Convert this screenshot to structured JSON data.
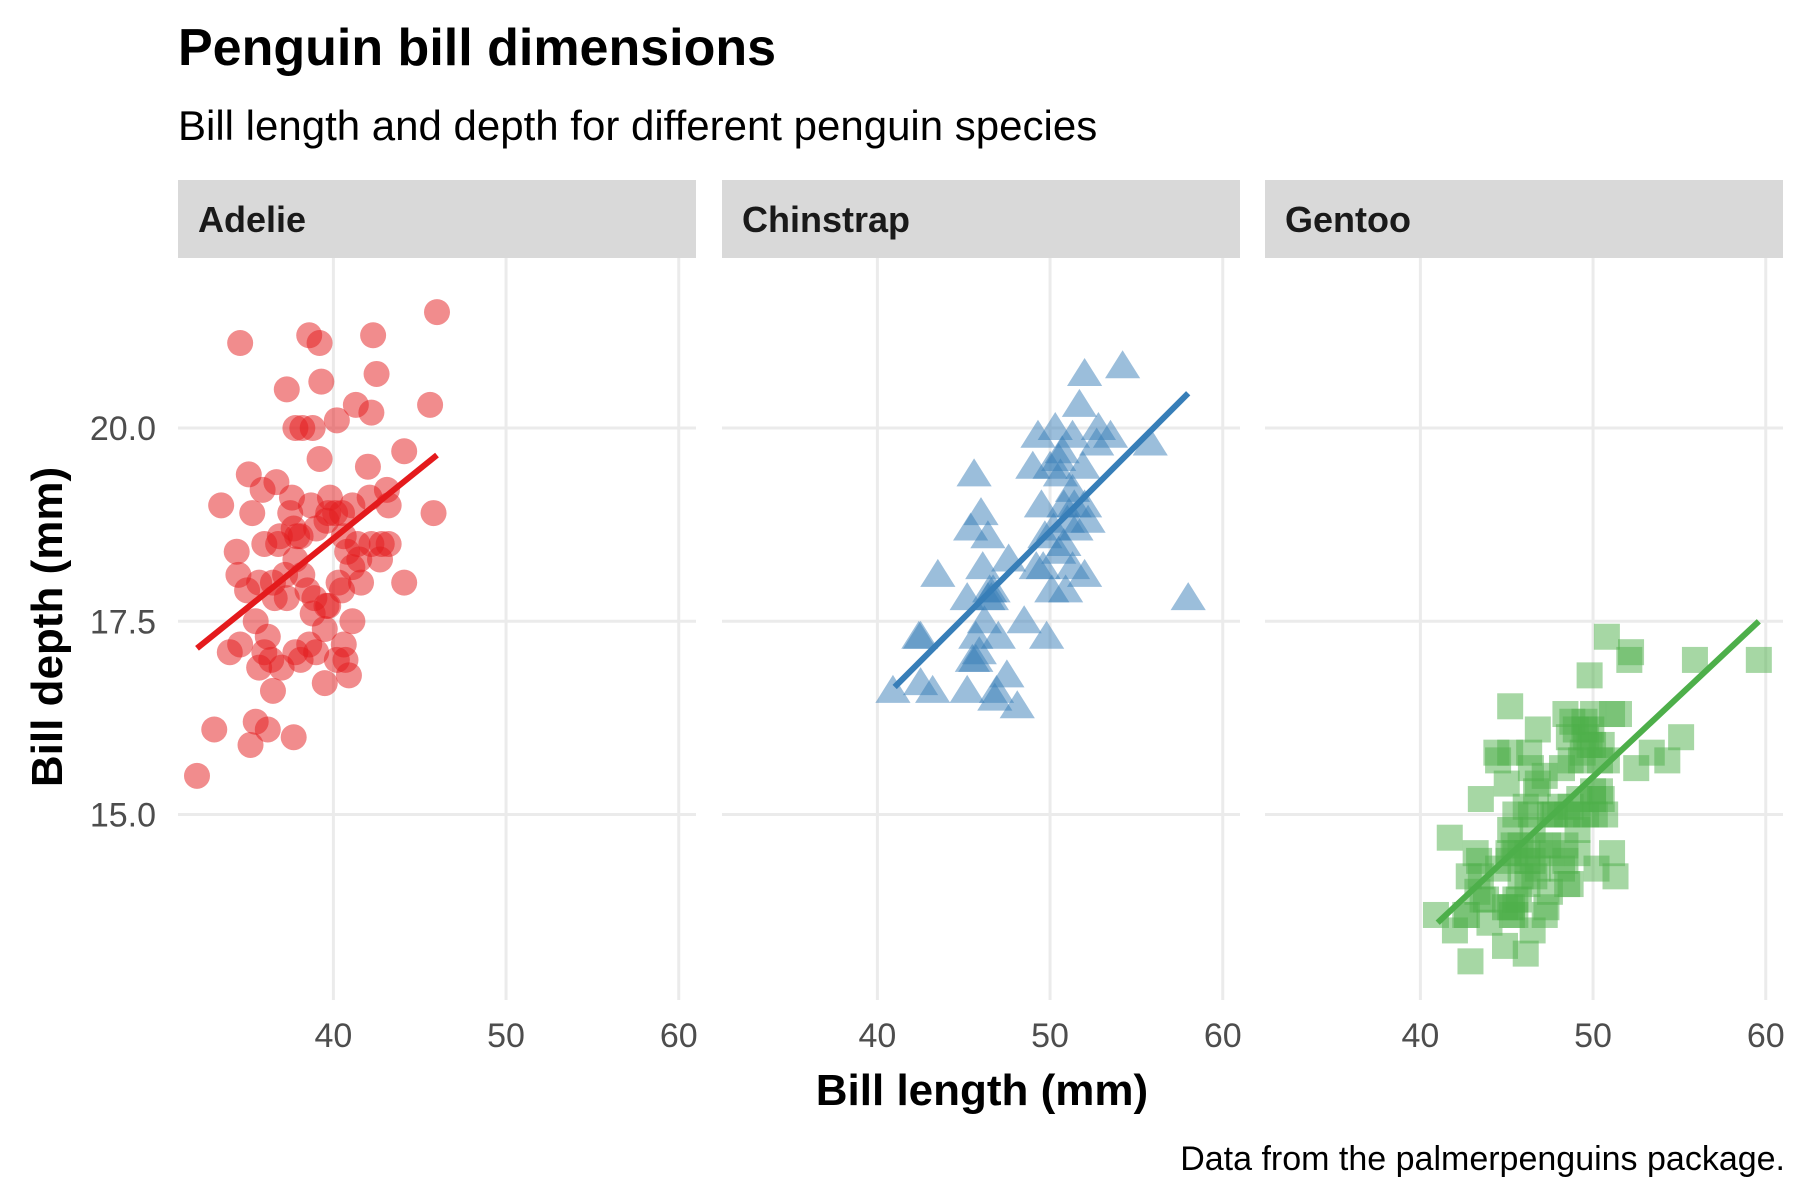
{
  "chart_data": {
    "type": "scatter",
    "title": "Penguin bill dimensions",
    "subtitle": "Bill length and depth for different penguin species",
    "xlabel": "Bill length (mm)",
    "ylabel": "Bill depth (mm)",
    "caption": "Data from the palmerpenguins package.",
    "xlim": [
      31,
      61
    ],
    "ylim": [
      12.6,
      22.2
    ],
    "x_ticks": [
      "40",
      "50",
      "60"
    ],
    "x_tick_values": [
      40,
      50,
      60
    ],
    "y_ticks": [
      "15.0",
      "17.5",
      "20.0"
    ],
    "y_tick_values": [
      15.0,
      17.5,
      20.0
    ],
    "grid": true,
    "legend": "none",
    "facets": [
      {
        "name": "Adelie",
        "color": "#e41a1c",
        "shape": "circle",
        "trend": [
          [
            32.1,
            17.15
          ],
          [
            46.0,
            19.65
          ]
        ],
        "points": [
          [
            32.1,
            15.5
          ],
          [
            33.1,
            16.1
          ],
          [
            33.5,
            19.0
          ],
          [
            34.0,
            17.1
          ],
          [
            34.4,
            18.4
          ],
          [
            34.5,
            18.1
          ],
          [
            34.6,
            21.1
          ],
          [
            34.6,
            17.2
          ],
          [
            35.0,
            17.9
          ],
          [
            35.1,
            19.4
          ],
          [
            35.2,
            15.9
          ],
          [
            35.3,
            18.9
          ],
          [
            35.5,
            16.2
          ],
          [
            35.5,
            17.5
          ],
          [
            35.7,
            16.9
          ],
          [
            35.7,
            18.0
          ],
          [
            35.9,
            19.2
          ],
          [
            36.0,
            17.1
          ],
          [
            36.0,
            18.5
          ],
          [
            36.2,
            16.1
          ],
          [
            36.2,
            17.3
          ],
          [
            36.4,
            17.0
          ],
          [
            36.5,
            18.0
          ],
          [
            36.5,
            16.6
          ],
          [
            36.6,
            17.8
          ],
          [
            36.7,
            19.3
          ],
          [
            36.8,
            18.5
          ],
          [
            36.9,
            18.6
          ],
          [
            37.0,
            16.9
          ],
          [
            37.2,
            18.1
          ],
          [
            37.3,
            17.8
          ],
          [
            37.3,
            20.5
          ],
          [
            37.5,
            18.9
          ],
          [
            37.6,
            19.1
          ],
          [
            37.7,
            16.0
          ],
          [
            37.7,
            18.7
          ],
          [
            37.8,
            17.1
          ],
          [
            37.8,
            18.3
          ],
          [
            37.8,
            20.0
          ],
          [
            37.9,
            18.6
          ],
          [
            38.1,
            17.0
          ],
          [
            38.1,
            18.6
          ],
          [
            38.2,
            18.1
          ],
          [
            38.2,
            20.0
          ],
          [
            38.5,
            17.9
          ],
          [
            38.6,
            17.2
          ],
          [
            38.6,
            21.2
          ],
          [
            38.7,
            19.0
          ],
          [
            38.8,
            17.6
          ],
          [
            38.8,
            20.0
          ],
          [
            38.9,
            17.8
          ],
          [
            39.0,
            17.1
          ],
          [
            39.0,
            18.7
          ],
          [
            39.2,
            19.6
          ],
          [
            39.2,
            21.1
          ],
          [
            39.3,
            20.6
          ],
          [
            39.5,
            16.7
          ],
          [
            39.5,
            17.4
          ],
          [
            39.6,
            17.7
          ],
          [
            39.6,
            18.8
          ],
          [
            39.7,
            17.7
          ],
          [
            39.7,
            18.9
          ],
          [
            39.8,
            19.1
          ],
          [
            40.1,
            18.9
          ],
          [
            40.2,
            17.0
          ],
          [
            40.2,
            20.1
          ],
          [
            40.3,
            18.0
          ],
          [
            40.5,
            17.9
          ],
          [
            40.5,
            18.9
          ],
          [
            40.6,
            17.2
          ],
          [
            40.6,
            18.6
          ],
          [
            40.7,
            17.0
          ],
          [
            40.8,
            18.4
          ],
          [
            40.9,
            16.8
          ],
          [
            41.1,
            17.5
          ],
          [
            41.1,
            18.2
          ],
          [
            41.1,
            19.0
          ],
          [
            41.3,
            20.3
          ],
          [
            41.4,
            18.5
          ],
          [
            41.5,
            18.3
          ],
          [
            41.6,
            18.0
          ],
          [
            42.0,
            19.5
          ],
          [
            42.1,
            19.1
          ],
          [
            42.2,
            18.5
          ],
          [
            42.2,
            20.2
          ],
          [
            42.3,
            21.2
          ],
          [
            42.5,
            20.7
          ],
          [
            42.7,
            18.3
          ],
          [
            42.8,
            18.5
          ],
          [
            43.1,
            19.2
          ],
          [
            43.2,
            18.5
          ],
          [
            43.2,
            19.0
          ],
          [
            44.1,
            18.0
          ],
          [
            44.1,
            19.7
          ],
          [
            45.6,
            20.3
          ],
          [
            45.8,
            18.9
          ],
          [
            46.0,
            21.5
          ]
        ]
      },
      {
        "name": "Chinstrap",
        "color": "#377eb8",
        "shape": "triangle",
        "trend": [
          [
            41.0,
            16.65
          ],
          [
            58.0,
            20.45
          ]
        ],
        "points": [
          [
            40.9,
            16.6
          ],
          [
            42.4,
            17.3
          ],
          [
            42.5,
            16.7
          ],
          [
            42.5,
            17.3
          ],
          [
            43.2,
            16.6
          ],
          [
            43.5,
            18.1
          ],
          [
            45.2,
            16.6
          ],
          [
            45.2,
            17.8
          ],
          [
            45.4,
            18.7
          ],
          [
            45.5,
            17.0
          ],
          [
            45.6,
            19.4
          ],
          [
            45.7,
            17.0
          ],
          [
            45.7,
            17.3
          ],
          [
            45.9,
            17.1
          ],
          [
            46.0,
            18.9
          ],
          [
            46.1,
            18.2
          ],
          [
            46.2,
            17.5
          ],
          [
            46.4,
            17.8
          ],
          [
            46.4,
            18.6
          ],
          [
            46.5,
            17.9
          ],
          [
            46.6,
            17.8
          ],
          [
            46.7,
            17.9
          ],
          [
            46.8,
            16.5
          ],
          [
            46.9,
            16.6
          ],
          [
            47.0,
            17.3
          ],
          [
            47.5,
            16.8
          ],
          [
            47.6,
            18.3
          ],
          [
            48.1,
            16.4
          ],
          [
            48.5,
            17.5
          ],
          [
            49.0,
            19.5
          ],
          [
            49.2,
            18.2
          ],
          [
            49.3,
            19.9
          ],
          [
            49.5,
            19.0
          ],
          [
            49.6,
            18.2
          ],
          [
            49.7,
            18.6
          ],
          [
            49.8,
            17.3
          ],
          [
            50.0,
            19.5
          ],
          [
            50.1,
            17.9
          ],
          [
            50.2,
            18.7
          ],
          [
            50.3,
            20.0
          ],
          [
            50.5,
            18.4
          ],
          [
            50.5,
            19.6
          ],
          [
            50.6,
            19.4
          ],
          [
            50.7,
            19.7
          ],
          [
            50.8,
            18.5
          ],
          [
            50.8,
            19.0
          ],
          [
            50.9,
            17.9
          ],
          [
            51.0,
            18.8
          ],
          [
            51.3,
            18.2
          ],
          [
            51.3,
            19.2
          ],
          [
            51.3,
            19.9
          ],
          [
            51.4,
            19.0
          ],
          [
            51.5,
            18.7
          ],
          [
            51.7,
            20.3
          ],
          [
            51.9,
            19.5
          ],
          [
            52.0,
            18.1
          ],
          [
            52.0,
            19.0
          ],
          [
            52.0,
            20.7
          ],
          [
            52.2,
            18.8
          ],
          [
            52.7,
            19.8
          ],
          [
            52.8,
            20.0
          ],
          [
            53.5,
            19.9
          ],
          [
            54.2,
            20.8
          ],
          [
            55.8,
            19.8
          ],
          [
            58.0,
            17.8
          ]
        ]
      },
      {
        "name": "Gentoo",
        "color": "#4daf4a",
        "shape": "square",
        "trend": [
          [
            41.0,
            13.6
          ],
          [
            59.6,
            17.5
          ]
        ],
        "points": [
          [
            40.9,
            13.7
          ],
          [
            41.7,
            14.7
          ],
          [
            42.0,
            13.5
          ],
          [
            42.6,
            13.7
          ],
          [
            42.7,
            13.7
          ],
          [
            42.8,
            14.2
          ],
          [
            42.9,
            13.1
          ],
          [
            43.2,
            14.5
          ],
          [
            43.3,
            14.0
          ],
          [
            43.4,
            14.4
          ],
          [
            43.5,
            14.2
          ],
          [
            43.5,
            15.2
          ],
          [
            43.6,
            13.9
          ],
          [
            43.8,
            13.9
          ],
          [
            44.0,
            13.6
          ],
          [
            44.4,
            15.8
          ],
          [
            44.5,
            14.3
          ],
          [
            44.5,
            15.7
          ],
          [
            44.9,
            13.3
          ],
          [
            44.9,
            13.8
          ],
          [
            45.0,
            15.4
          ],
          [
            45.1,
            14.5
          ],
          [
            45.1,
            14.4
          ],
          [
            45.2,
            13.8
          ],
          [
            45.2,
            14.8
          ],
          [
            45.2,
            15.8
          ],
          [
            45.2,
            16.4
          ],
          [
            45.3,
            13.7
          ],
          [
            45.3,
            13.8
          ],
          [
            45.4,
            14.6
          ],
          [
            45.5,
            13.7
          ],
          [
            45.5,
            13.9
          ],
          [
            45.5,
            14.5
          ],
          [
            45.5,
            15.0
          ],
          [
            45.7,
            13.9
          ],
          [
            45.8,
            14.2
          ],
          [
            45.8,
            14.6
          ],
          [
            46.1,
            13.2
          ],
          [
            46.1,
            15.1
          ],
          [
            46.2,
            14.1
          ],
          [
            46.2,
            14.4
          ],
          [
            46.2,
            14.5
          ],
          [
            46.3,
            15.8
          ],
          [
            46.4,
            15.0
          ],
          [
            46.4,
            15.6
          ],
          [
            46.5,
            13.5
          ],
          [
            46.5,
            14.4
          ],
          [
            46.5,
            14.8
          ],
          [
            46.6,
            14.2
          ],
          [
            46.7,
            15.3
          ],
          [
            46.8,
            14.3
          ],
          [
            46.8,
            15.4
          ],
          [
            46.8,
            16.1
          ],
          [
            46.9,
            14.6
          ],
          [
            47.2,
            13.7
          ],
          [
            47.2,
            15.5
          ],
          [
            47.3,
            13.8
          ],
          [
            47.4,
            14.6
          ],
          [
            47.5,
            14.0
          ],
          [
            47.5,
            15.0
          ],
          [
            47.6,
            14.5
          ],
          [
            47.7,
            15.0
          ],
          [
            47.8,
            15.0
          ],
          [
            48.1,
            15.1
          ],
          [
            48.2,
            14.3
          ],
          [
            48.2,
            15.6
          ],
          [
            48.4,
            14.4
          ],
          [
            48.4,
            14.6
          ],
          [
            48.4,
            16.3
          ],
          [
            48.5,
            14.1
          ],
          [
            48.5,
            15.0
          ],
          [
            48.6,
            16.0
          ],
          [
            48.7,
            14.1
          ],
          [
            48.7,
            15.1
          ],
          [
            48.7,
            15.7
          ],
          [
            48.8,
            16.2
          ],
          [
            49.0,
            16.1
          ],
          [
            49.1,
            14.5
          ],
          [
            49.1,
            14.8
          ],
          [
            49.1,
            15.0
          ],
          [
            49.2,
            15.2
          ],
          [
            49.3,
            15.7
          ],
          [
            49.4,
            15.8
          ],
          [
            49.5,
            16.1
          ],
          [
            49.5,
            16.2
          ],
          [
            49.6,
            15.0
          ],
          [
            49.6,
            16.0
          ],
          [
            49.8,
            15.9
          ],
          [
            49.8,
            16.8
          ],
          [
            49.9,
            16.1
          ],
          [
            50.0,
            15.2
          ],
          [
            50.0,
            15.3
          ],
          [
            50.0,
            15.9
          ],
          [
            50.0,
            16.3
          ],
          [
            50.1,
            15.0
          ],
          [
            50.2,
            14.3
          ],
          [
            50.4,
            15.3
          ],
          [
            50.4,
            15.7
          ],
          [
            50.5,
            15.2
          ],
          [
            50.5,
            15.9
          ],
          [
            50.7,
            15.0
          ],
          [
            50.8,
            15.7
          ],
          [
            50.8,
            17.3
          ],
          [
            51.1,
            14.5
          ],
          [
            51.1,
            16.3
          ],
          [
            51.3,
            14.2
          ],
          [
            51.5,
            16.3
          ],
          [
            52.1,
            17.0
          ],
          [
            52.2,
            17.1
          ],
          [
            52.5,
            15.6
          ],
          [
            53.4,
            15.8
          ],
          [
            54.3,
            15.7
          ],
          [
            55.1,
            16.0
          ],
          [
            55.9,
            17.0
          ],
          [
            59.6,
            17.0
          ]
        ]
      }
    ]
  }
}
